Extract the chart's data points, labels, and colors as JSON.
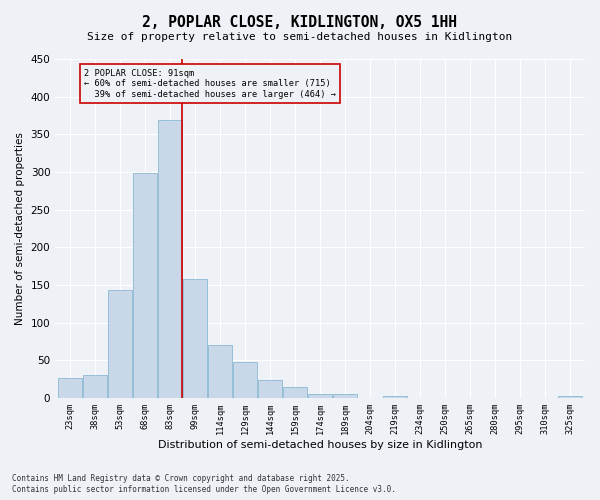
{
  "title": "2, POPLAR CLOSE, KIDLINGTON, OX5 1HH",
  "subtitle": "Size of property relative to semi-detached houses in Kidlington",
  "xlabel": "Distribution of semi-detached houses by size in Kidlington",
  "ylabel": "Number of semi-detached properties",
  "categories": [
    "23sqm",
    "38sqm",
    "53sqm",
    "68sqm",
    "83sqm",
    "99sqm",
    "114sqm",
    "129sqm",
    "144sqm",
    "159sqm",
    "174sqm",
    "189sqm",
    "204sqm",
    "219sqm",
    "234sqm",
    "250sqm",
    "265sqm",
    "280sqm",
    "295sqm",
    "310sqm",
    "325sqm"
  ],
  "values": [
    27,
    30,
    143,
    299,
    369,
    158,
    70,
    48,
    24,
    15,
    5,
    6,
    0,
    3,
    0,
    0,
    0,
    0,
    0,
    0,
    3
  ],
  "bar_color": "#c8d8e8",
  "bar_edge_color": "#7ab0cc",
  "property_bin_index": 4,
  "property_label": "2 POPLAR CLOSE: 91sqm",
  "smaller_pct": "60%",
  "smaller_count": 715,
  "larger_pct": "39%",
  "larger_count": 464,
  "vline_color": "#cc0000",
  "annotation_box_color": "#cc0000",
  "ylim": [
    0,
    450
  ],
  "yticks": [
    0,
    50,
    100,
    150,
    200,
    250,
    300,
    350,
    400,
    450
  ],
  "bg_color": "#eef2f7",
  "grid_color": "#ffffff",
  "footer1": "Contains HM Land Registry data © Crown copyright and database right 2025.",
  "footer2": "Contains public sector information licensed under the Open Government Licence v3.0."
}
